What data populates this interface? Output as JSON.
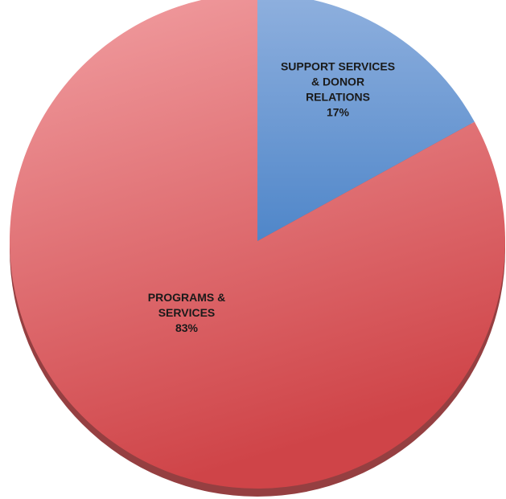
{
  "chart_data": {
    "type": "pie",
    "title": "",
    "slices": [
      {
        "label_lines": [
          "SUPPORT SERVICES",
          "& DONOR",
          "RELATIONS"
        ],
        "label": "SUPPORT SERVICES & DONOR RELATIONS",
        "value": 17,
        "value_label": "17%",
        "color": "#8fb0de",
        "color_dark": "#4f86c9"
      },
      {
        "label_lines": [
          "PROGRAMS &",
          "SERVICES"
        ],
        "label": "PROGRAMS & SERVICES",
        "value": 83,
        "value_label": "83%",
        "color": "#f2a0a3",
        "color_dark": "#cf4448"
      }
    ],
    "start_angle_deg": 0,
    "direction": "clockwise",
    "legend": "none",
    "data_labels": "inside"
  }
}
